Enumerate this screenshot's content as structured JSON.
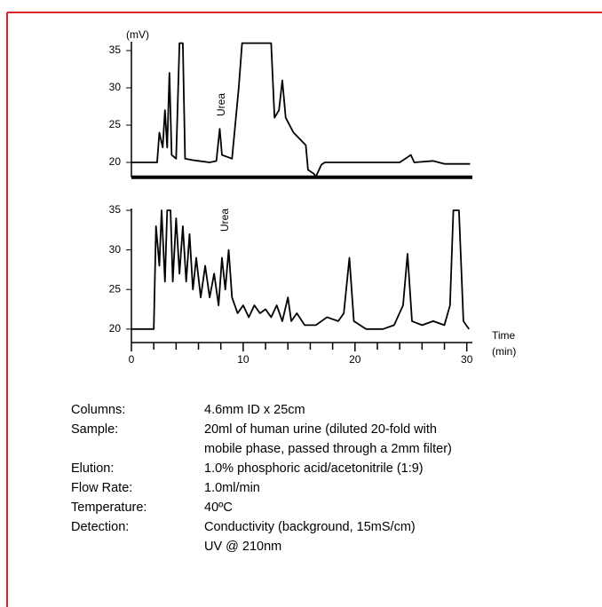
{
  "chart_data": [
    {
      "type": "line",
      "ylabel": "(mV)",
      "annotation": "Urea",
      "color": "#000000",
      "xlim": [
        0,
        30.5
      ],
      "ylim": [
        18,
        36
      ],
      "yticks": [
        20,
        25,
        30,
        35
      ],
      "x": [
        0,
        2.3,
        2.5,
        2.8,
        3.0,
        3.2,
        3.4,
        3.6,
        4.0,
        4.3,
        4.6,
        4.8,
        5.5,
        6,
        7,
        7.6,
        7.9,
        8.1,
        9,
        9.6,
        9.9,
        12.5,
        12.8,
        13.2,
        13.5,
        13.8,
        14.5,
        15.6,
        15.8,
        16.3,
        16.5,
        17.0,
        17.3,
        20,
        22,
        24,
        25,
        25.3,
        27,
        28,
        30.3
      ],
      "values": [
        20,
        20,
        24,
        22,
        27,
        22,
        32,
        21,
        20.5,
        36,
        36,
        20.5,
        20.3,
        20.2,
        20,
        20.2,
        24.5,
        21,
        20.5,
        30,
        36,
        36,
        26,
        27,
        31,
        26,
        24,
        22.3,
        19,
        18.5,
        18.1,
        19.7,
        20,
        20,
        20,
        20,
        21,
        20,
        20.2,
        19.8,
        19.8
      ]
    },
    {
      "type": "line",
      "xlabel": "Time",
      "xunit": "(min)",
      "annotation": "Urea",
      "color": "#000000",
      "xlim": [
        0,
        30.5
      ],
      "ylim": [
        18.3,
        35
      ],
      "yticks": [
        20,
        25,
        30,
        35
      ],
      "xticks": [
        0,
        10,
        20,
        30
      ],
      "minor_xticks": [
        2,
        4,
        6,
        8,
        12,
        14,
        16,
        18,
        22,
        24,
        26,
        28
      ],
      "x": [
        0,
        2,
        2.2,
        2.5,
        2.7,
        3,
        3.2,
        3.5,
        3.7,
        4,
        4.3,
        4.6,
        4.9,
        5.2,
        5.5,
        5.8,
        6.2,
        6.6,
        7,
        7.4,
        7.8,
        8.1,
        8.4,
        8.7,
        9,
        9.5,
        10,
        10.5,
        11,
        11.5,
        12,
        12.5,
        13,
        13.5,
        14,
        14.3,
        14.8,
        15.5,
        16.5,
        17.5,
        18.5,
        19,
        19.5,
        19.9,
        21,
        22.5,
        23.5,
        24.3,
        24.7,
        25.1,
        26,
        27,
        28,
        28.5,
        28.8,
        29.3,
        29.7,
        30.2
      ],
      "values": [
        20,
        20,
        33,
        28,
        35,
        26,
        35,
        35,
        26,
        34,
        27,
        33,
        26,
        32,
        25,
        29,
        24,
        28,
        24,
        27,
        23,
        29,
        25,
        30,
        24,
        22,
        23,
        21.5,
        23,
        22,
        22.5,
        21.5,
        23,
        21,
        24,
        21,
        22,
        20.5,
        20.5,
        21.5,
        21,
        22,
        29,
        21,
        20,
        20,
        20.5,
        23,
        29.5,
        21,
        20.5,
        21,
        20.5,
        23,
        35,
        35,
        21,
        20
      ]
    }
  ],
  "conditions": [
    {
      "label": "Columns:",
      "lines": [
        "4.6mm ID x 25cm"
      ]
    },
    {
      "label": "Sample:",
      "lines": [
        "20ml of human urine (diluted 20-fold with",
        "mobile phase, passed through a 2mm filter)"
      ]
    },
    {
      "label": "Elution:",
      "lines": [
        "1.0% phosphoric acid/acetonitrile (1:9)"
      ]
    },
    {
      "label": "Flow Rate:",
      "lines": [
        "1.0ml/min"
      ]
    },
    {
      "label": "Temperature:",
      "lines": [
        "40ºC"
      ]
    },
    {
      "label": "Detection:",
      "lines": [
        "Conductivity (background, 15mS/cm)",
        "UV @ 210nm"
      ]
    }
  ]
}
